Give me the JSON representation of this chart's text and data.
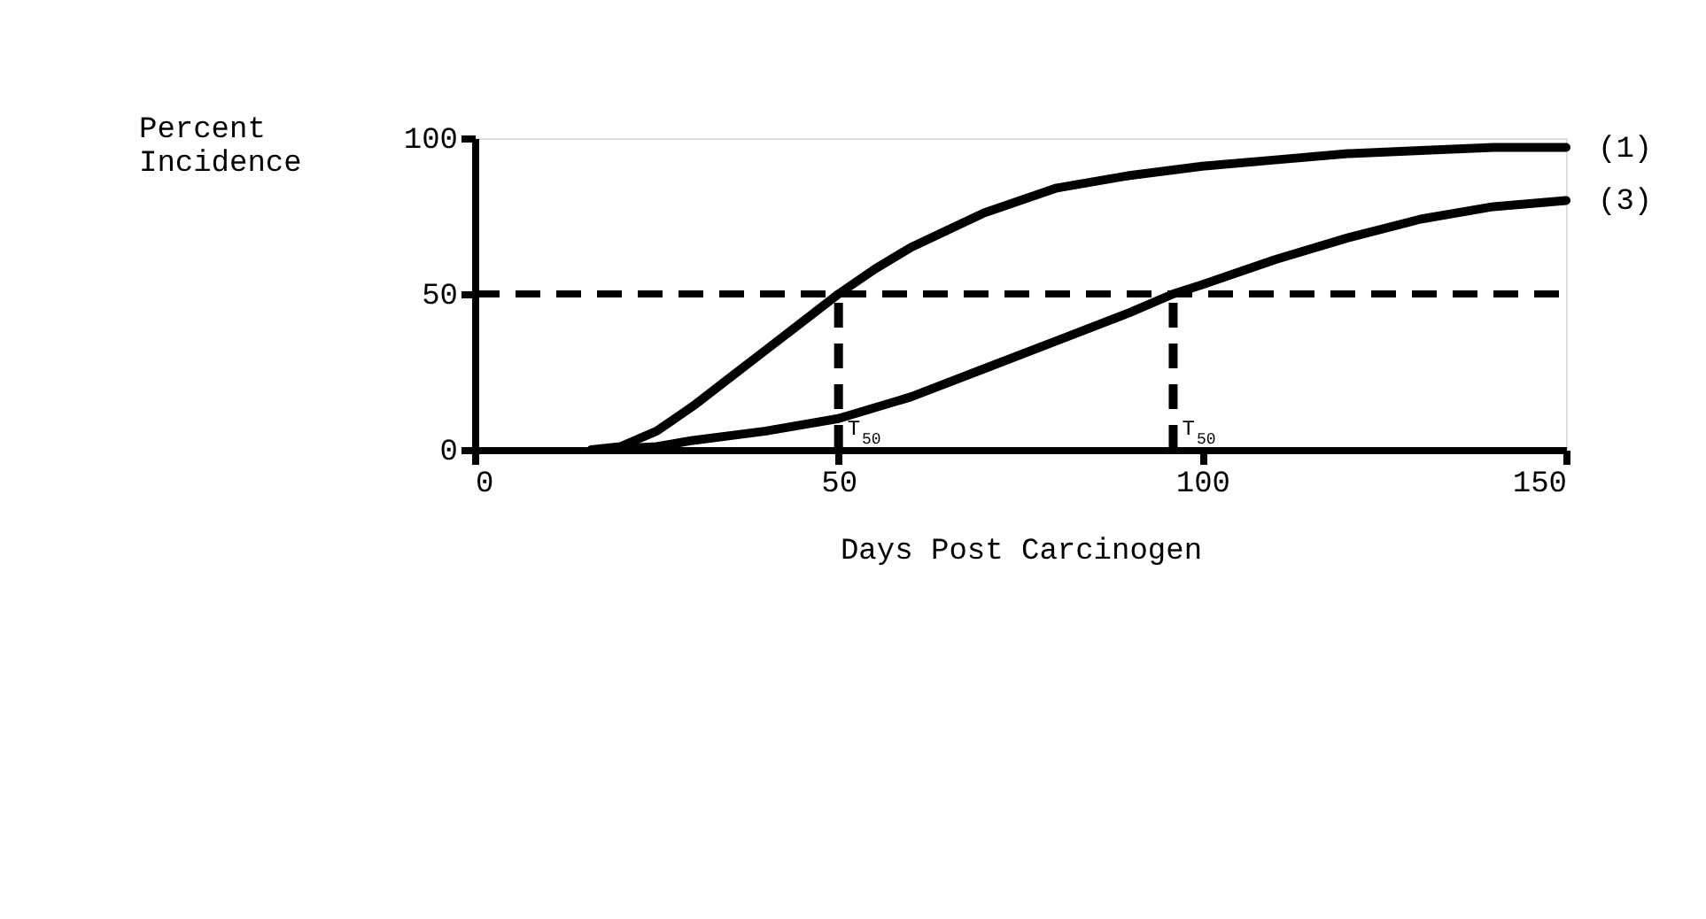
{
  "chart_data": {
    "type": "line",
    "xlabel": "Days Post Carcinogen",
    "ylabel": "Percent Incidence",
    "xlim": [
      0,
      150
    ],
    "ylim": [
      0,
      100
    ],
    "xticks": [
      0,
      50,
      100,
      150
    ],
    "yticks": [
      0,
      50,
      100
    ],
    "grid": false,
    "marker": "none",
    "line_style": "solid",
    "series": [
      {
        "name": "(1)",
        "color": "#000000",
        "x": [
          16,
          20,
          25,
          30,
          35,
          40,
          45,
          50,
          55,
          60,
          70,
          80,
          90,
          100,
          110,
          120,
          130,
          140,
          150
        ],
        "values": [
          0,
          1,
          6,
          14,
          23,
          32,
          41,
          50,
          58,
          65,
          76,
          84,
          88,
          91,
          93,
          95,
          96,
          97,
          97
        ]
      },
      {
        "name": "(3)",
        "color": "#000000",
        "x": [
          17,
          25,
          30,
          40,
          50,
          60,
          70,
          80,
          90,
          96,
          100,
          110,
          120,
          130,
          140,
          150
        ],
        "values": [
          0,
          1,
          3,
          6,
          10,
          17,
          26,
          35,
          44,
          50,
          53,
          61,
          68,
          74,
          78,
          80
        ]
      }
    ],
    "ref_lines": [
      {
        "axis": "y",
        "value": 50,
        "line_style": "dashed",
        "color": "#000000"
      },
      {
        "axis": "x",
        "value": 50,
        "line_style": "dashed",
        "color": "#000000"
      },
      {
        "axis": "x",
        "value": 96,
        "line_style": "dashed",
        "color": "#000000"
      }
    ],
    "annotations": [
      {
        "text": "T$_{50}$",
        "x": 50,
        "y": 3
      },
      {
        "text": "T$_{50}$",
        "x": 96,
        "y": 3
      }
    ]
  }
}
